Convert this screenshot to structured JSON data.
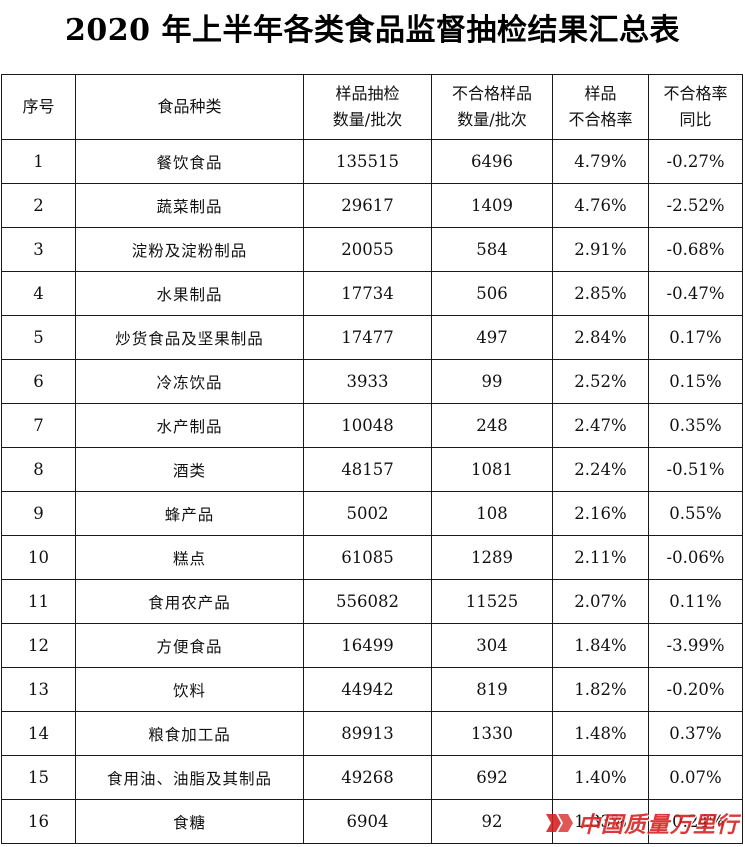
{
  "title": "2020 年上半年各类食品监督抽检结果汇总表",
  "columns": {
    "index": "序号",
    "category": "食品种类",
    "samples_line1": "样品抽检",
    "samples_line2": "数量/批次",
    "failed_line1": "不合格样品",
    "failed_line2": "数量/批次",
    "rate_line1": "样品",
    "rate_line2": "不合格率",
    "yoy_line1": "不合格率",
    "yoy_line2": "同比"
  },
  "rows": [
    {
      "index": "1",
      "category": "餐饮食品",
      "samples": "135515",
      "failed": "6496",
      "rate": "4.79%",
      "yoy": "-0.27%"
    },
    {
      "index": "2",
      "category": "蔬菜制品",
      "samples": "29617",
      "failed": "1409",
      "rate": "4.76%",
      "yoy": "-2.52%"
    },
    {
      "index": "3",
      "category": "淀粉及淀粉制品",
      "samples": "20055",
      "failed": "584",
      "rate": "2.91%",
      "yoy": "-0.68%"
    },
    {
      "index": "4",
      "category": "水果制品",
      "samples": "17734",
      "failed": "506",
      "rate": "2.85%",
      "yoy": "-0.47%"
    },
    {
      "index": "5",
      "category": "炒货食品及坚果制品",
      "samples": "17477",
      "failed": "497",
      "rate": "2.84%",
      "yoy": "0.17%"
    },
    {
      "index": "6",
      "category": "冷冻饮品",
      "samples": "3933",
      "failed": "99",
      "rate": "2.52%",
      "yoy": "0.15%"
    },
    {
      "index": "7",
      "category": "水产制品",
      "samples": "10048",
      "failed": "248",
      "rate": "2.47%",
      "yoy": "0.35%"
    },
    {
      "index": "8",
      "category": "酒类",
      "samples": "48157",
      "failed": "1081",
      "rate": "2.24%",
      "yoy": "-0.51%"
    },
    {
      "index": "9",
      "category": "蜂产品",
      "samples": "5002",
      "failed": "108",
      "rate": "2.16%",
      "yoy": "0.55%"
    },
    {
      "index": "10",
      "category": "糕点",
      "samples": "61085",
      "failed": "1289",
      "rate": "2.11%",
      "yoy": "-0.06%"
    },
    {
      "index": "11",
      "category": "食用农产品",
      "samples": "556082",
      "failed": "11525",
      "rate": "2.07%",
      "yoy": "0.11%"
    },
    {
      "index": "12",
      "category": "方便食品",
      "samples": "16499",
      "failed": "304",
      "rate": "1.84%",
      "yoy": "-3.99%"
    },
    {
      "index": "13",
      "category": "饮料",
      "samples": "44942",
      "failed": "819",
      "rate": "1.82%",
      "yoy": "-0.20%"
    },
    {
      "index": "14",
      "category": "粮食加工品",
      "samples": "89913",
      "failed": "1330",
      "rate": "1.48%",
      "yoy": "0.37%"
    },
    {
      "index": "15",
      "category": "食用油、油脂及其制品",
      "samples": "49268",
      "failed": "692",
      "rate": "1.40%",
      "yoy": "0.07%"
    },
    {
      "index": "16",
      "category": "食糖",
      "samples": "6904",
      "failed": "92",
      "rate": "1.33%",
      "yoy": "-0.24%"
    }
  ],
  "watermark": {
    "text": "中国质量万里行",
    "color": "#d61e1e",
    "icon": "brand-logo-icon"
  }
}
